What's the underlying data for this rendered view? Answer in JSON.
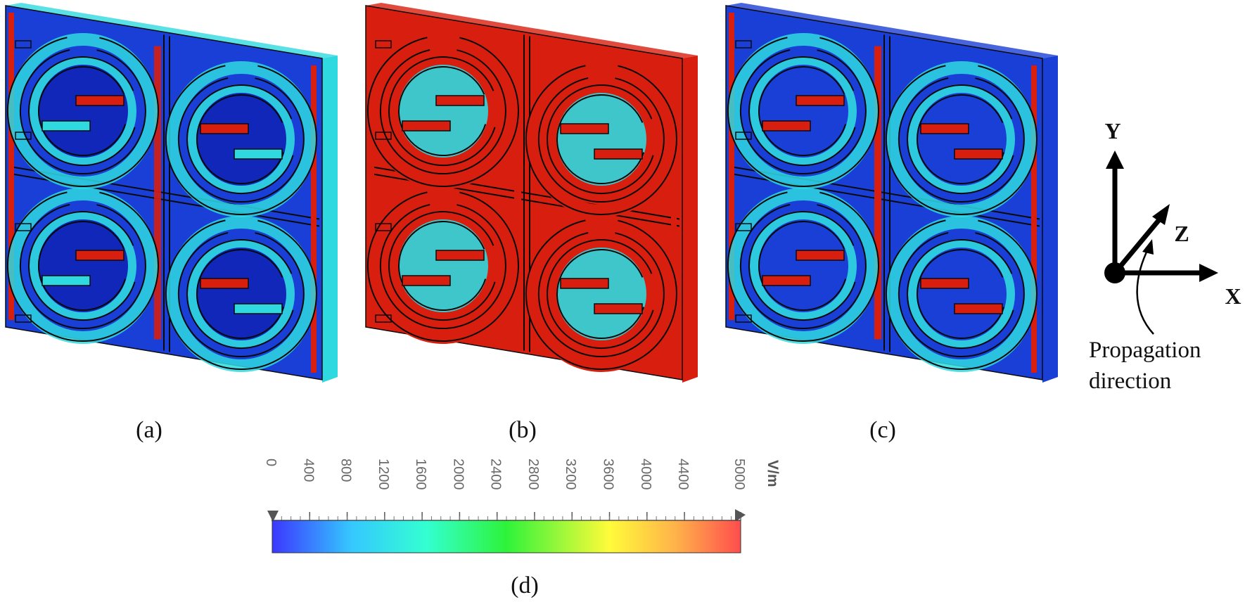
{
  "panels": [
    {
      "id": "a",
      "caption": "(a)",
      "field": "low"
    },
    {
      "id": "b",
      "caption": "(b)",
      "field": "high"
    },
    {
      "id": "c",
      "caption": "(c)",
      "field": "mid"
    }
  ],
  "colorbar": {
    "caption": "(d)",
    "unit": "V/m",
    "ticks": [
      "0",
      "400",
      "800",
      "1200",
      "1600",
      "2000",
      "2400",
      "2800",
      "3200",
      "3600",
      "4000",
      "4400",
      "5000"
    ],
    "colors": [
      "#3b37ff",
      "#35c8ff",
      "#33ffd1",
      "#2ef33a",
      "#fffb3a",
      "#ffb34a",
      "#ff4d4d"
    ]
  },
  "axes": {
    "y_label": "Y",
    "x_label": "X",
    "z_label": "Z",
    "note_line1": "Propagation",
    "note_line2": "direction"
  },
  "field_colors": {
    "blue": "#1a3fd6",
    "dark_blue": "#0f25b8",
    "cyan": "#2fd9e0",
    "green": "#36e05a",
    "yellow": "#f6e83a",
    "red": "#d81e0e",
    "edge": "#0a0a0a"
  }
}
